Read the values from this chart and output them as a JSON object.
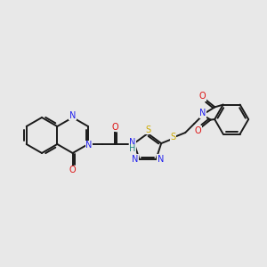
{
  "bg_color": "#e8e8e8",
  "bond_color": "#1a1a1a",
  "bond_lw": 1.4,
  "figsize": [
    3.0,
    3.0
  ],
  "dpi": 100,
  "xlim": [
    0,
    300
  ],
  "ylim": [
    0,
    300
  ],
  "colors": {
    "N": "#2222ee",
    "O": "#dd1111",
    "S": "#ccaa00",
    "H": "#228888",
    "C": "#1a1a1a"
  },
  "fs": 7.0
}
